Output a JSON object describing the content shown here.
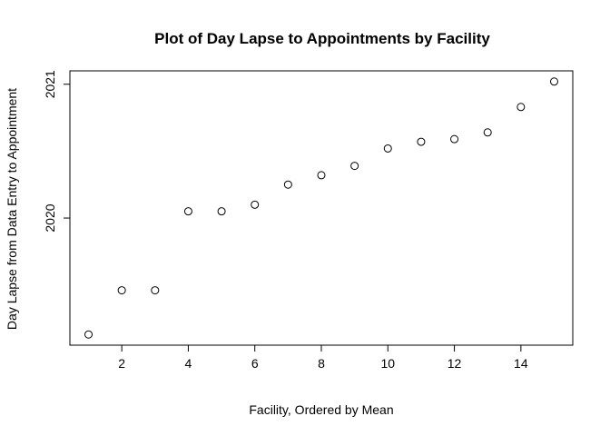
{
  "chart_data": {
    "type": "scatter",
    "title": "Plot of Day Lapse to Appointments by Facility",
    "xlabel": "Facility, Ordered by Mean",
    "ylabel": "Day Lapse from Data Entry to Appointment",
    "x": [
      1,
      2,
      3,
      4,
      5,
      6,
      7,
      8,
      9,
      10,
      11,
      12,
      13,
      14,
      15
    ],
    "y": [
      2019.13,
      2019.46,
      2019.46,
      2020.05,
      2020.05,
      2020.1,
      2020.25,
      2020.32,
      2020.39,
      2020.52,
      2020.57,
      2020.59,
      2020.64,
      2020.83,
      2021.02
    ],
    "xlim": [
      0.44,
      15.56
    ],
    "ylim": [
      2019.05,
      2021.1
    ],
    "xticks": [
      2,
      4,
      6,
      8,
      10,
      12,
      14
    ],
    "yticks": [
      2020,
      2021
    ],
    "grid": false,
    "legend": "none"
  }
}
